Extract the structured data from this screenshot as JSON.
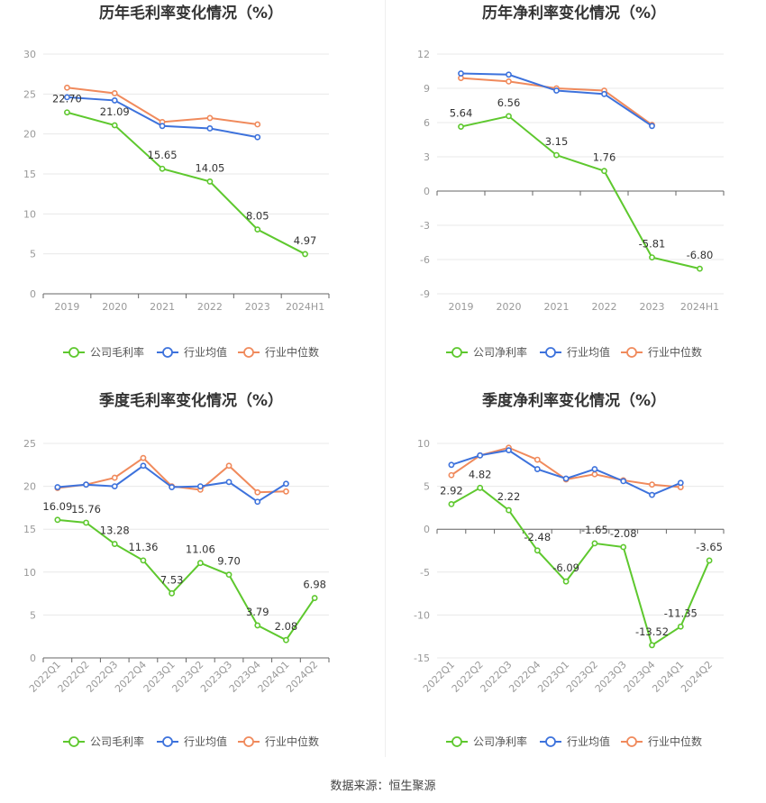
{
  "footer": "数据来源：恒生聚源",
  "colors": {
    "company": "#5ec82e",
    "avg": "#3d72dc",
    "median": "#f08a5c"
  },
  "chart_data": [
    {
      "type": "line",
      "title": "历年毛利率变化情况（%）",
      "categories": [
        "2019",
        "2020",
        "2021",
        "2022",
        "2023",
        "2024H1"
      ],
      "ylim": [
        0,
        30
      ],
      "yticks": [
        0,
        5,
        10,
        15,
        20,
        25,
        30
      ],
      "rotate_x": false,
      "grid": true,
      "legend_position": "bottom",
      "series": [
        {
          "name": "公司毛利率",
          "key": "company",
          "values": [
            22.7,
            21.09,
            15.65,
            14.05,
            8.05,
            4.97
          ],
          "labels": [
            "22.70",
            "21.09",
            "15.65",
            "14.05",
            "8.05",
            "4.97"
          ]
        },
        {
          "name": "行业均值",
          "key": "avg",
          "values": [
            24.6,
            24.2,
            21.0,
            20.7,
            19.6,
            null
          ]
        },
        {
          "name": "行业中位数",
          "key": "median",
          "values": [
            25.8,
            25.1,
            21.5,
            22.0,
            21.2,
            null
          ]
        }
      ]
    },
    {
      "type": "line",
      "title": "历年净利率变化情况（%）",
      "categories": [
        "2019",
        "2020",
        "2021",
        "2022",
        "2023",
        "2024H1"
      ],
      "ylim": [
        -9,
        12
      ],
      "yticks": [
        -9,
        -6,
        -3,
        0,
        3,
        6,
        9,
        12
      ],
      "rotate_x": false,
      "grid": true,
      "legend_position": "bottom",
      "series": [
        {
          "name": "公司净利率",
          "key": "company",
          "values": [
            5.64,
            6.56,
            3.15,
            1.76,
            -5.81,
            -6.8
          ],
          "labels": [
            "5.64",
            "6.56",
            "3.15",
            "1.76",
            "-5.81",
            "-6.80"
          ]
        },
        {
          "name": "行业均值",
          "key": "avg",
          "values": [
            10.3,
            10.2,
            8.8,
            8.5,
            5.7,
            null
          ]
        },
        {
          "name": "行业中位数",
          "key": "median",
          "values": [
            9.9,
            9.6,
            9.0,
            8.8,
            5.8,
            null
          ]
        }
      ]
    },
    {
      "type": "line",
      "title": "季度毛利率变化情况（%）",
      "categories": [
        "2022Q1",
        "2022Q2",
        "2022Q3",
        "2022Q4",
        "2023Q1",
        "2023Q2",
        "2023Q3",
        "2023Q4",
        "2024Q1",
        "2024Q2"
      ],
      "ylim": [
        0,
        25
      ],
      "yticks": [
        0,
        5,
        10,
        15,
        20,
        25
      ],
      "rotate_x": true,
      "grid": true,
      "legend_position": "bottom",
      "series": [
        {
          "name": "公司毛利率",
          "key": "company",
          "values": [
            16.09,
            15.76,
            13.28,
            11.36,
            7.53,
            11.06,
            9.7,
            3.79,
            2.08,
            6.98
          ],
          "labels": [
            "16.09",
            "15.76",
            "13.28",
            "11.36",
            "7.53",
            "11.06",
            "9.70",
            "3.79",
            "2.08",
            "6.98"
          ]
        },
        {
          "name": "行业均值",
          "key": "avg",
          "values": [
            19.9,
            20.2,
            20.0,
            22.4,
            19.9,
            20.0,
            20.5,
            18.2,
            20.3,
            null
          ]
        },
        {
          "name": "行业中位数",
          "key": "median",
          "values": [
            19.8,
            20.2,
            21.0,
            23.3,
            20.0,
            19.6,
            22.4,
            19.3,
            19.4,
            null
          ]
        }
      ]
    },
    {
      "type": "line",
      "title": "季度净利率变化情况（%）",
      "categories": [
        "2022Q1",
        "2022Q2",
        "2022Q3",
        "2022Q4",
        "2023Q1",
        "2023Q2",
        "2023Q3",
        "2023Q4",
        "2024Q1",
        "2024Q2"
      ],
      "ylim": [
        -15,
        10
      ],
      "yticks": [
        -15,
        -10,
        -5,
        0,
        5,
        10
      ],
      "rotate_x": true,
      "grid": true,
      "legend_position": "bottom",
      "series": [
        {
          "name": "公司净利率",
          "key": "company",
          "values": [
            2.92,
            4.82,
            2.22,
            -2.48,
            -6.09,
            -1.65,
            -2.08,
            -13.52,
            -11.35,
            -3.65
          ],
          "labels": [
            "2.92",
            "4.82",
            "2.22",
            "-2.48",
            "-6.09",
            "-1.65",
            "-2.08",
            "-13.52",
            "-11.35",
            "-3.65"
          ]
        },
        {
          "name": "行业均值",
          "key": "avg",
          "values": [
            7.5,
            8.6,
            9.2,
            7.0,
            5.9,
            7.0,
            5.6,
            4.0,
            5.4,
            null
          ]
        },
        {
          "name": "行业中位数",
          "key": "median",
          "values": [
            6.3,
            8.6,
            9.5,
            8.1,
            5.8,
            6.4,
            5.7,
            5.2,
            4.9,
            null
          ]
        }
      ]
    }
  ]
}
